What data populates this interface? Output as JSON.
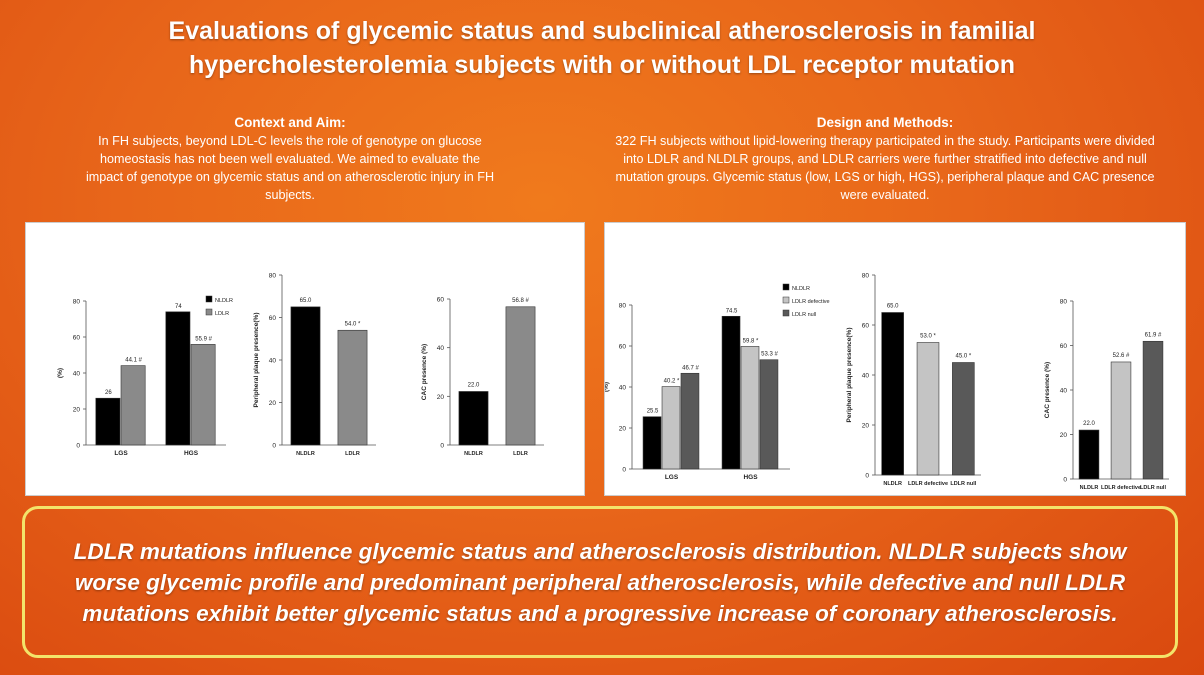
{
  "header": {
    "title_line1": "Evaluations of glycemic status and subclinical atherosclerosis in familial",
    "title_line2": "hypercholesterolemia subjects with or without LDL receptor mutation"
  },
  "context": {
    "heading": "Context and Aim:",
    "text": "In FH subjects, beyond LDL-C levels the role of genotype on glucose homeostasis has not been well evaluated. We aimed to evaluate the impact of genotype on glycemic status and on atherosclerotic injury in FH subjects."
  },
  "methods": {
    "heading": "Design and Methods:",
    "text": "322 FH subjects without lipid-lowering therapy participated in the study. Participants were divided into LDLR and NLDLR groups, and LDLR carriers were further stratified into defective and null mutation groups. Glycemic status (low, LGS or high, HGS), peripheral plaque and CAC presence were evaluated."
  },
  "conclusion": {
    "text": "LDLR mutations influence glycemic status and atherosclerosis distribution. NLDLR subjects show worse glycemic profile and predominant peripheral atherosclerosis, while defective and null LDLR mutations exhibit better glycemic status and a progressive increase of coronary atherosclerosis."
  },
  "colors": {
    "nldlr": "#000000",
    "ldlr": "#8a8a8a",
    "ldlr_defective": "#c4c4c4",
    "ldlr_null": "#595959"
  },
  "chart_data": [
    {
      "panel": "left",
      "type": "bar",
      "categories": [
        "LGS",
        "HGS"
      ],
      "series": [
        {
          "name": "NLDLR",
          "values": [
            26,
            74
          ],
          "labels": [
            "26",
            "74"
          ],
          "color": "#000000"
        },
        {
          "name": "LDLR",
          "values": [
            44.1,
            55.9
          ],
          "labels": [
            "44.1 #",
            "55.9 #"
          ],
          "color": "#8a8a8a"
        }
      ],
      "ylabel": "(%)",
      "ylim": [
        0,
        80
      ],
      "yticks": [
        0,
        20,
        40,
        60,
        80
      ],
      "legend": "right"
    },
    {
      "panel": "left",
      "type": "bar",
      "categories": [
        "NLDLR",
        "LDLR"
      ],
      "values": [
        65.0,
        54.0
      ],
      "labels": [
        "65.0",
        "54.0 *"
      ],
      "colors": [
        "#000000",
        "#8a8a8a"
      ],
      "ylabel": "Peripheral plaque presence(%)",
      "ylim": [
        0,
        80
      ],
      "yticks": [
        0,
        20,
        40,
        60,
        80
      ]
    },
    {
      "panel": "left",
      "type": "bar",
      "categories": [
        "NLDLR",
        "LDLR"
      ],
      "values": [
        22.0,
        56.8
      ],
      "labels": [
        "22.0",
        "56.8 #"
      ],
      "colors": [
        "#000000",
        "#8a8a8a"
      ],
      "ylabel": "CAC presence (%)",
      "ylim": [
        0,
        60
      ],
      "yticks": [
        0,
        20,
        40,
        60
      ]
    },
    {
      "panel": "right",
      "type": "bar",
      "categories": [
        "LGS",
        "HGS"
      ],
      "series": [
        {
          "name": "NLDLR",
          "values": [
            25.5,
            74.5
          ],
          "labels": [
            "25.5",
            "74.5"
          ],
          "color": "#000000"
        },
        {
          "name": "LDLR defective",
          "values": [
            40.2,
            59.8
          ],
          "labels": [
            "40.2 *",
            "59.8 *"
          ],
          "color": "#c4c4c4"
        },
        {
          "name": "LDLR null",
          "values": [
            46.7,
            53.3
          ],
          "labels": [
            "46.7 #",
            "53.3 #"
          ],
          "color": "#595959"
        }
      ],
      "ylabel": "(%)",
      "ylim": [
        0,
        80
      ],
      "yticks": [
        0,
        20,
        40,
        60,
        80
      ],
      "legend": "right"
    },
    {
      "panel": "right",
      "type": "bar",
      "categories": [
        "NLDLR",
        "LDLR defective",
        "LDLR null"
      ],
      "values": [
        65.0,
        53.0,
        45.0
      ],
      "labels": [
        "65.0",
        "53.0 *",
        "45.0 *"
      ],
      "colors": [
        "#000000",
        "#c4c4c4",
        "#595959"
      ],
      "ylabel": "Peripheral plaque presence(%)",
      "ylim": [
        0,
        80
      ],
      "yticks": [
        0,
        20,
        40,
        60,
        80
      ]
    },
    {
      "panel": "right",
      "type": "bar",
      "categories": [
        "NLDLR",
        "LDLR defective",
        "LDLR null"
      ],
      "values": [
        22.0,
        52.6,
        61.9
      ],
      "labels": [
        "22.0",
        "52.6 #",
        "61.9 #"
      ],
      "colors": [
        "#000000",
        "#c4c4c4",
        "#595959"
      ],
      "ylabel": "CAC presence (%)",
      "ylim": [
        0,
        80
      ],
      "yticks": [
        0,
        20,
        40,
        60,
        80
      ]
    }
  ]
}
